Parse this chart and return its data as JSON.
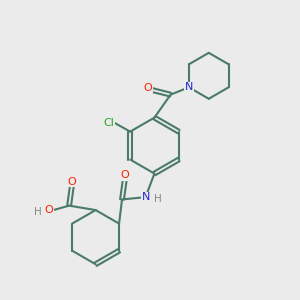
{
  "background_color": "#ebebeb",
  "bond_color": "#4a7a6a",
  "atom_colors": {
    "O": "#ff2200",
    "N": "#2222cc",
    "Cl": "#22aa22",
    "C": "#4a7a6a",
    "H": "#888888"
  },
  "figsize": [
    3.0,
    3.0
  ],
  "dpi": 100
}
